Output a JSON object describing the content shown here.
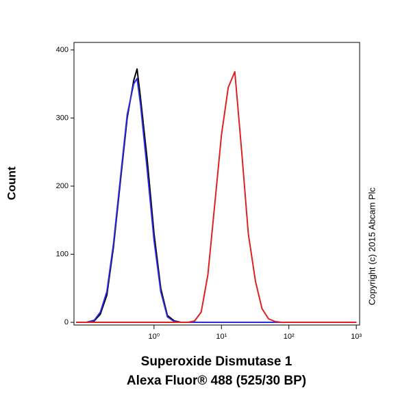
{
  "chart_data": {
    "type": "line",
    "xlabel": [
      "Superoxide Dismutase 1",
      "Alexa Fluor® 488 (525/30 BP)"
    ],
    "ylabel": "Count",
    "annotation": "Copyright (c) 2015 Abcam Plc",
    "xscale": "log",
    "xlim": [
      0.065,
      1120
    ],
    "ylim": [
      -4,
      411
    ],
    "xticks": [
      {
        "value": 1,
        "label": "10⁰"
      },
      {
        "value": 10,
        "label": "10¹"
      },
      {
        "value": 100,
        "label": "10²"
      },
      {
        "value": 1000,
        "label": "10³"
      }
    ],
    "yticks": [
      0,
      100,
      200,
      300,
      400
    ],
    "x": [
      0.07,
      0.1,
      0.13,
      0.16,
      0.2,
      0.25,
      0.32,
      0.4,
      0.5,
      0.56,
      0.63,
      0.79,
      1,
      1.26,
      1.58,
      2,
      2.5,
      3.2,
      4,
      5,
      6.3,
      7.9,
      10,
      12.6,
      15.8,
      20,
      25,
      32,
      40,
      50,
      63,
      79,
      100,
      1000
    ],
    "series": [
      {
        "color": "#000000",
        "values": [
          0,
          0,
          2,
          12,
          40,
          110,
          210,
          300,
          355,
          372,
          330,
          240,
          130,
          50,
          10,
          2,
          0,
          0,
          0,
          0,
          0,
          0,
          0,
          0,
          0,
          0,
          0,
          0,
          0,
          0,
          0,
          0,
          0,
          0
        ]
      },
      {
        "color": "#2a2adf",
        "values": [
          0,
          0,
          3,
          15,
          45,
          115,
          215,
          305,
          350,
          358,
          320,
          225,
          120,
          45,
          8,
          1,
          0,
          0,
          0,
          0,
          0,
          0,
          0,
          0,
          0,
          0,
          0,
          0,
          0,
          0,
          0,
          0,
          0,
          0
        ]
      },
      {
        "color": "#e02020",
        "values": [
          0,
          0,
          0,
          0,
          0,
          0,
          0,
          0,
          0,
          0,
          0,
          0,
          0,
          0,
          0,
          0,
          0,
          0,
          2,
          15,
          70,
          170,
          275,
          345,
          368,
          250,
          130,
          60,
          20,
          5,
          1,
          0,
          0,
          0
        ]
      }
    ]
  }
}
